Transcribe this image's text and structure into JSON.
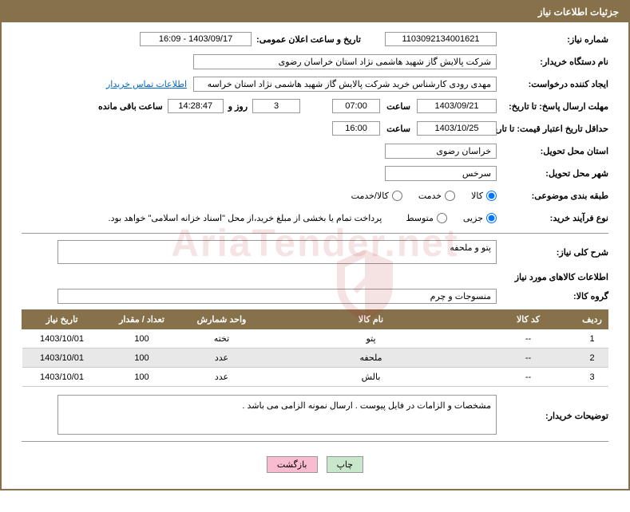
{
  "header": {
    "title": "جزئیات اطلاعات نیاز"
  },
  "fields": {
    "need_number_label": "شماره نیاز:",
    "need_number": "1103092134001621",
    "announce_date_label": "تاریخ و ساعت اعلان عمومی:",
    "announce_date": "1403/09/17 - 16:09",
    "buyer_org_label": "نام دستگاه خریدار:",
    "buyer_org": "شرکت پالایش گاز شهید هاشمی نژاد   استان خراسان رضوی",
    "requester_label": "ایجاد کننده درخواست:",
    "requester": "مهدی رودی کارشناس خرید شرکت پالایش گاز شهید هاشمی نژاد   استان خراسه",
    "contact_link": "اطلاعات تماس خریدار",
    "response_deadline_label": "مهلت ارسال پاسخ: تا تاریخ:",
    "response_date": "1403/09/21",
    "time_label": "ساعت",
    "response_time": "07:00",
    "days": "3",
    "days_label": "روز و",
    "countdown": "14:28:47",
    "remaining_label": "ساعت باقی مانده",
    "price_validity_label": "حداقل تاریخ اعتبار قیمت: تا تاریخ:",
    "price_date": "1403/10/25",
    "price_time": "16:00",
    "delivery_province_label": "استان محل تحویل:",
    "delivery_province": "خراسان رضوی",
    "delivery_city_label": "شهر محل تحویل:",
    "delivery_city": "سرخس",
    "category_label": "طبقه بندی موضوعی:",
    "category_options": {
      "goods": "کالا",
      "service": "خدمت",
      "both": "کالا/خدمت"
    },
    "process_label": "نوع فرآیند خرید:",
    "process_options": {
      "minor": "جزیی",
      "medium": "متوسط"
    },
    "payment_note": "پرداخت تمام یا بخشی از مبلغ خرید،‌از محل \"اسناد خزانه اسلامی\" خواهد بود.",
    "summary_label": "شرح کلی نیاز:",
    "summary": "پتو و ملحفه",
    "goods_section": "اطلاعات کالاهای مورد نیاز",
    "goods_group_label": "گروه کالا:",
    "goods_group": "منسوجات و چرم",
    "buyer_notes_label": "توضیحات خریدار:",
    "buyer_notes": "مشخصات و الزامات در فایل پیوست .  ارسال نمونه  الزامی می باشد ."
  },
  "table": {
    "headers": [
      "ردیف",
      "کد کالا",
      "نام کالا",
      "واحد شمارش",
      "تعداد / مقدار",
      "تاریخ نیاز"
    ],
    "rows": [
      [
        "1",
        "--",
        "پتو",
        "تخته",
        "100",
        "1403/10/01"
      ],
      [
        "2",
        "--",
        "ملحفه",
        "عدد",
        "100",
        "1403/10/01"
      ],
      [
        "3",
        "--",
        "بالش",
        "عدد",
        "100",
        "1403/10/01"
      ]
    ]
  },
  "buttons": {
    "print": "چاپ",
    "back": "بازگشت"
  },
  "watermark": "AriaTender.net",
  "colors": {
    "brand": "#87714a",
    "link": "#0066cc",
    "border": "#999999"
  }
}
